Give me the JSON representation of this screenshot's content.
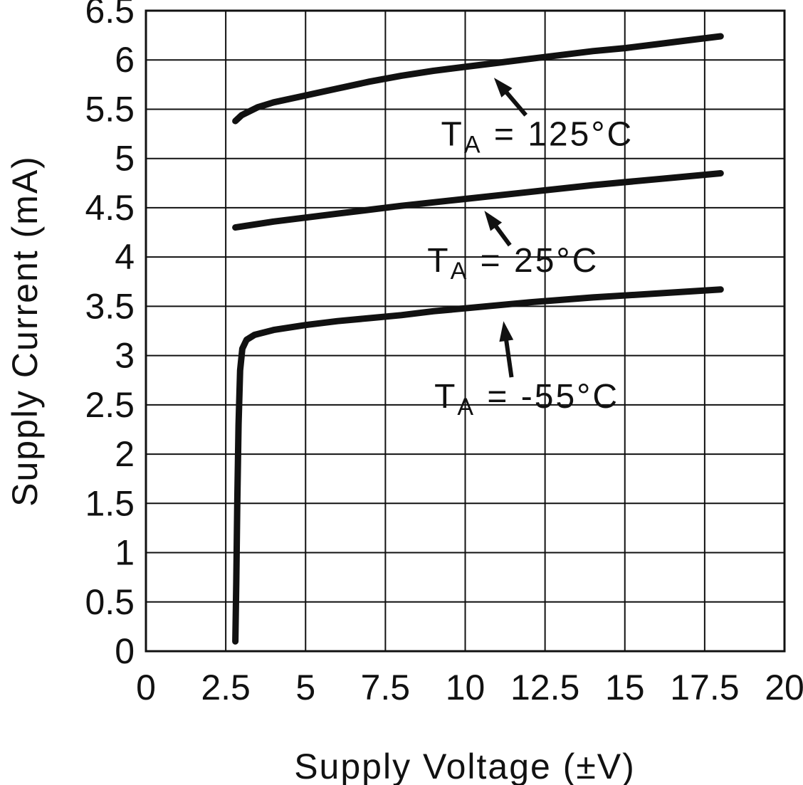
{
  "chart_data": {
    "type": "line",
    "title": "",
    "xlabel": "Supply Voltage (±V)",
    "ylabel": "Supply Current (mA)",
    "xlim": [
      0,
      20
    ],
    "ylim": [
      0,
      6.5
    ],
    "xticks": [
      0,
      2.5,
      5,
      7.5,
      10,
      12.5,
      15,
      17.5,
      20
    ],
    "xtick_labels": [
      "0",
      "2.5",
      "5",
      "7.5",
      "10",
      "12.5",
      "15",
      "17.5",
      "20"
    ],
    "yticks": [
      0,
      0.5,
      1,
      1.5,
      2,
      2.5,
      3,
      3.5,
      4,
      4.5,
      5,
      5.5,
      6,
      6.5
    ],
    "ytick_labels": [
      "0",
      "0.5",
      "1",
      "1.5",
      "2",
      "2.5",
      "3",
      "3.5",
      "4",
      "4.5",
      "5",
      "5.5",
      "6",
      "6.5"
    ],
    "grid": true,
    "legend_position": "none",
    "line_color": "#111111",
    "grid_color": "#111111",
    "background": "#ffffff",
    "series": [
      {
        "name": "TA = 125°C",
        "label": {
          "pre": "T",
          "sub": "A",
          "rest": " = 125°C"
        },
        "label_pos": [
          12.26,
          5.13
        ],
        "arrow": {
          "from": [
            11.9,
            5.44
          ],
          "to": [
            10.9,
            5.82
          ]
        },
        "points": [
          [
            2.8,
            5.38
          ],
          [
            3,
            5.44
          ],
          [
            3.5,
            5.52
          ],
          [
            4,
            5.57
          ],
          [
            5,
            5.64
          ],
          [
            6,
            5.71
          ],
          [
            7,
            5.78
          ],
          [
            8,
            5.84
          ],
          [
            9,
            5.89
          ],
          [
            10,
            5.93
          ],
          [
            11,
            5.97
          ],
          [
            12,
            6.01
          ],
          [
            13,
            6.05
          ],
          [
            14,
            6.09
          ],
          [
            15,
            6.12
          ],
          [
            16,
            6.16
          ],
          [
            17,
            6.2
          ],
          [
            18,
            6.24
          ]
        ]
      },
      {
        "name": "TA = 25°C",
        "label": {
          "pre": "T",
          "sub": "A",
          "rest": " = 25°C"
        },
        "label_pos": [
          11.5,
          3.85
        ],
        "arrow": {
          "from": [
            11.4,
            4.12
          ],
          "to": [
            10.6,
            4.47
          ]
        },
        "points": [
          [
            2.8,
            4.3
          ],
          [
            4,
            4.36
          ],
          [
            6,
            4.44
          ],
          [
            8,
            4.52
          ],
          [
            10,
            4.59
          ],
          [
            12,
            4.66
          ],
          [
            14,
            4.73
          ],
          [
            16,
            4.79
          ],
          [
            18,
            4.85
          ]
        ]
      },
      {
        "name": "TA = -55°C",
        "label": {
          "pre": "T",
          "sub": "A",
          "rest": " = -55°C"
        },
        "label_pos": [
          11.93,
          2.47
        ],
        "arrow": {
          "from": [
            11.45,
            2.78
          ],
          "to": [
            11.2,
            3.35
          ]
        },
        "points": [
          [
            2.8,
            0.1
          ],
          [
            2.83,
            0.7
          ],
          [
            2.86,
            1.5
          ],
          [
            2.9,
            2.3
          ],
          [
            2.95,
            2.85
          ],
          [
            3.02,
            3.07
          ],
          [
            3.15,
            3.16
          ],
          [
            3.4,
            3.21
          ],
          [
            4,
            3.26
          ],
          [
            5,
            3.31
          ],
          [
            6,
            3.35
          ],
          [
            7,
            3.38
          ],
          [
            8,
            3.41
          ],
          [
            9,
            3.45
          ],
          [
            10,
            3.48
          ],
          [
            12,
            3.54
          ],
          [
            14,
            3.59
          ],
          [
            16,
            3.63
          ],
          [
            18,
            3.67
          ]
        ]
      }
    ]
  }
}
